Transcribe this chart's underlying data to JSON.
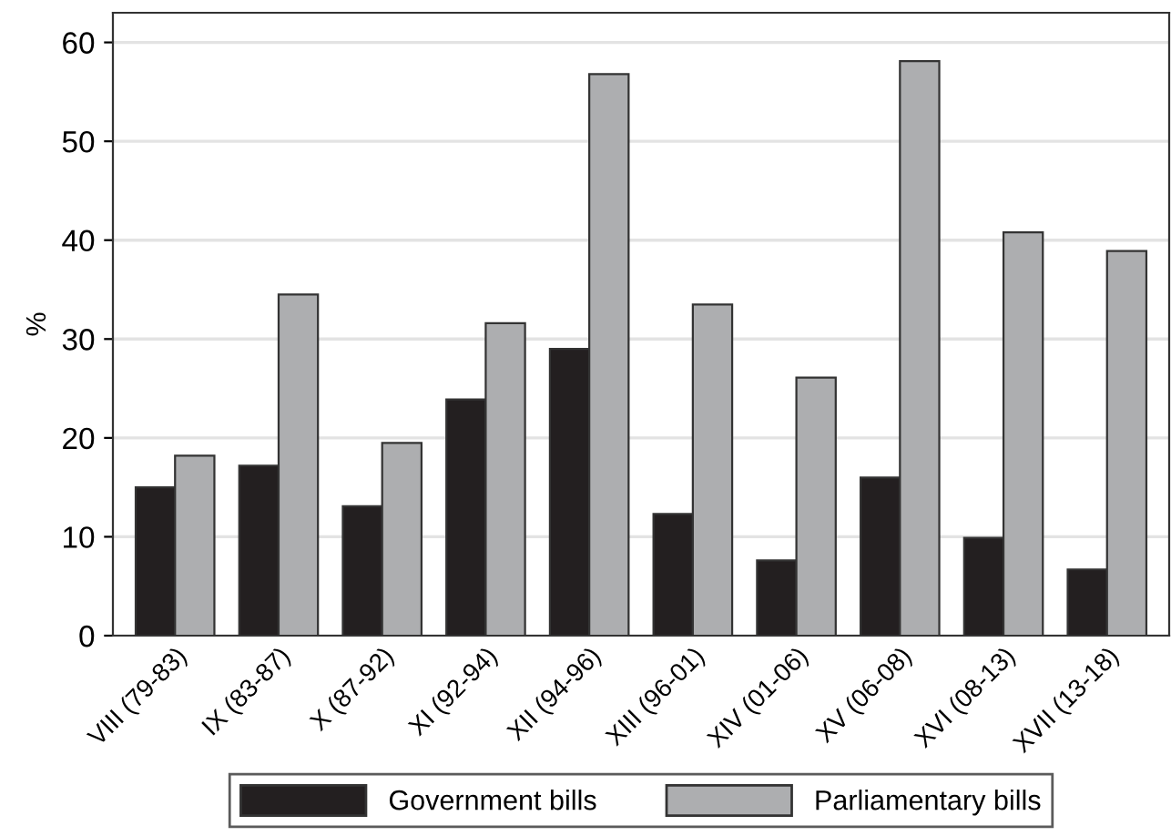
{
  "chart_data": {
    "type": "bar",
    "ylabel": "%",
    "categories": [
      "VIII (79-83)",
      "IX (83-87)",
      "X (87-92)",
      "XI (92-94)",
      "XII (94-96)",
      "XIII (96-01)",
      "XIV (01-06)",
      "XV (06-08)",
      "XVI (08-13)",
      "XVII (13-18)"
    ],
    "series": [
      {
        "name": "Government bills",
        "color": "#231f20",
        "values": [
          15.0,
          17.2,
          13.1,
          23.9,
          29.0,
          12.3,
          7.6,
          16.0,
          9.9,
          6.7
        ]
      },
      {
        "name": "Parliamentary bills",
        "color": "#adaeb0",
        "values": [
          18.2,
          34.5,
          19.5,
          31.6,
          56.8,
          33.5,
          26.1,
          58.1,
          40.8,
          38.9
        ]
      }
    ],
    "ylim": [
      0,
      63
    ],
    "yticks": [
      0,
      10,
      20,
      30,
      40,
      50,
      60
    ],
    "grid": "y",
    "legend": "bottom"
  }
}
